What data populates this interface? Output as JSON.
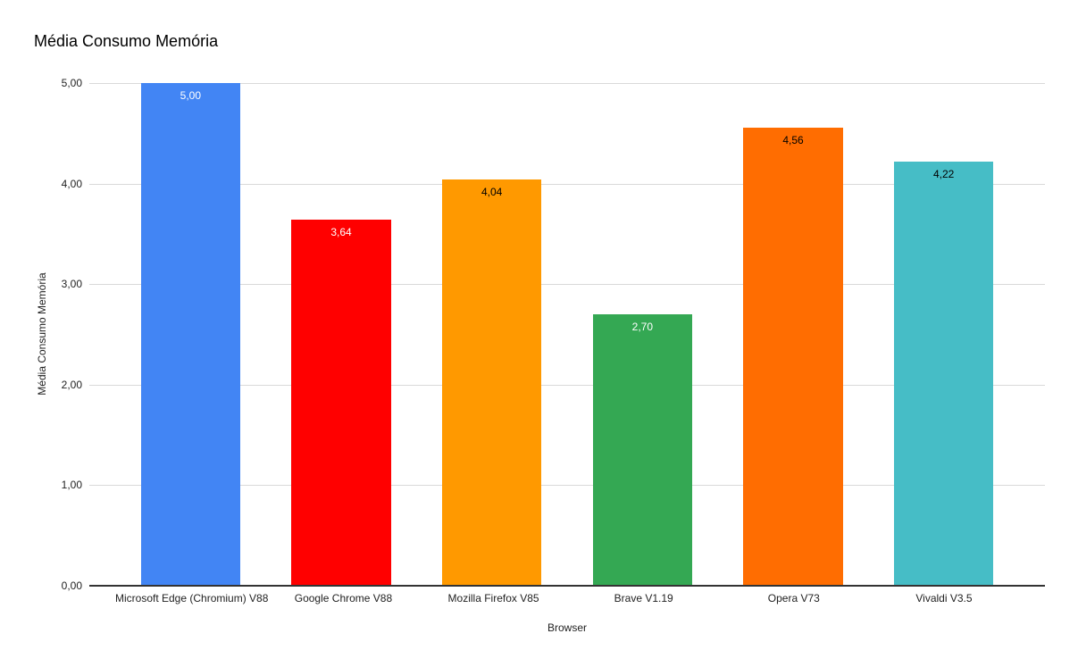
{
  "chart_data": {
    "type": "bar",
    "title": "Média Consumo Memória",
    "xlabel": "Browser",
    "ylabel": "Média Consumo Memória",
    "categories": [
      "Microsoft Edge (Chromium) V88",
      "Google Chrome V88",
      "Mozilla Firefox V85",
      "Brave V1.19",
      "Opera V73",
      "Vivaldi V3.5"
    ],
    "values": [
      5.0,
      3.64,
      4.04,
      2.7,
      4.56,
      4.22
    ],
    "value_labels": [
      "5,00",
      "3,64",
      "4,04",
      "2,70",
      "4,56",
      "4,22"
    ],
    "bar_colors": [
      "#4285F4",
      "#FF0000",
      "#FF9900",
      "#34A853",
      "#FF6D01",
      "#46BDC6"
    ],
    "value_label_colors": [
      "#FFFFFF",
      "#FFFFFF",
      "#000000",
      "#FFFFFF",
      "#000000",
      "#000000"
    ],
    "ylim": [
      0,
      5
    ],
    "ytick_labels": [
      "0,00",
      "1,00",
      "2,00",
      "3,00",
      "4,00",
      "5,00"
    ],
    "grid": true,
    "legend": "none",
    "colors": {
      "gridline": "#d9d9d9",
      "axis_line": "#333333",
      "title_text": "#000000",
      "tick_text": "#222222",
      "background": "#FFFFFF"
    }
  }
}
